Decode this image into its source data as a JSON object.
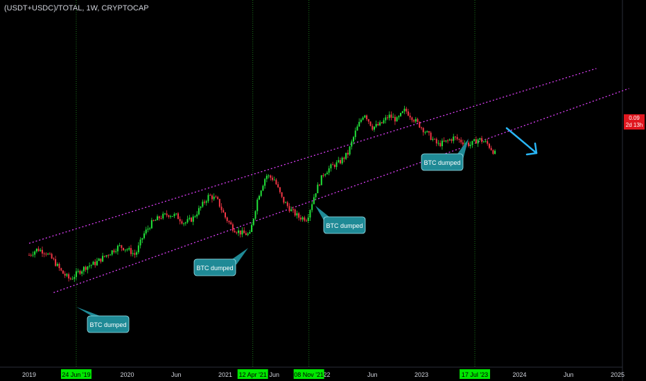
{
  "header": {
    "symbol_title": "(USDT+USDC)/TOTAL, 1W, CRYPTOCAP"
  },
  "price_scale": {
    "last_price": "0.09",
    "countdown": "2d 13h",
    "badge_color": "#e0171f"
  },
  "chart_data": {
    "type": "candlestick",
    "x_axis": {
      "tick_labels": [
        "2019",
        "Jun",
        "2020",
        "Jun",
        "2021",
        "Jun",
        "2022",
        "Jun",
        "2023",
        "Jun",
        "2024",
        "Jun",
        "2025"
      ],
      "highlighted_dates": [
        "24 Jun '19",
        "12 Apr '21",
        "08 Nov '21",
        "17 Jul '23"
      ]
    },
    "price_path": [
      [
        "2019-01",
        0.072
      ],
      [
        "2019-02",
        0.076
      ],
      [
        "2019-03",
        0.074
      ],
      [
        "2019-04",
        0.068
      ],
      [
        "2019-05",
        0.06
      ],
      [
        "2019-06",
        0.055
      ],
      [
        "2019-07",
        0.06
      ],
      [
        "2019-08",
        0.064
      ],
      [
        "2019-09",
        0.066
      ],
      [
        "2019-10",
        0.07
      ],
      [
        "2019-11",
        0.074
      ],
      [
        "2019-12",
        0.078
      ],
      [
        "2020-01",
        0.076
      ],
      [
        "2020-02",
        0.072
      ],
      [
        "2020-03",
        0.086
      ],
      [
        "2020-04",
        0.094
      ],
      [
        "2020-05",
        0.098
      ],
      [
        "2020-06",
        0.1
      ],
      [
        "2020-07",
        0.099
      ],
      [
        "2020-08",
        0.094
      ],
      [
        "2020-09",
        0.097
      ],
      [
        "2020-10",
        0.105
      ],
      [
        "2020-11",
        0.113
      ],
      [
        "2020-12",
        0.11
      ],
      [
        "2021-01",
        0.098
      ],
      [
        "2021-02",
        0.09
      ],
      [
        "2021-03",
        0.087
      ],
      [
        "2021-04",
        0.086
      ],
      [
        "2021-05",
        0.112
      ],
      [
        "2021-06",
        0.127
      ],
      [
        "2021-07",
        0.124
      ],
      [
        "2021-08",
        0.11
      ],
      [
        "2021-09",
        0.103
      ],
      [
        "2021-10",
        0.098
      ],
      [
        "2021-11",
        0.097
      ],
      [
        "2021-12",
        0.115
      ],
      [
        "2022-01",
        0.128
      ],
      [
        "2022-02",
        0.133
      ],
      [
        "2022-03",
        0.136
      ],
      [
        "2022-04",
        0.142
      ],
      [
        "2022-05",
        0.158
      ],
      [
        "2022-06",
        0.17
      ],
      [
        "2022-07",
        0.16
      ],
      [
        "2022-08",
        0.162
      ],
      [
        "2022-09",
        0.168
      ],
      [
        "2022-10",
        0.165
      ],
      [
        "2022-11",
        0.172
      ],
      [
        "2022-12",
        0.166
      ],
      [
        "2023-01",
        0.16
      ],
      [
        "2023-02",
        0.154
      ],
      [
        "2023-03",
        0.148
      ],
      [
        "2023-04",
        0.15
      ],
      [
        "2023-05",
        0.153
      ],
      [
        "2023-06",
        0.15
      ],
      [
        "2023-07",
        0.148
      ],
      [
        "2023-08",
        0.152
      ],
      [
        "2023-09",
        0.149
      ],
      [
        "2023-10",
        0.142
      ]
    ],
    "trend_channel": {
      "color": "#e040fb",
      "style": "dotted",
      "upper_line": [
        [
          "2019-01",
          0.08
        ],
        [
          "2024-02",
          0.186
        ]
      ],
      "lower_line": [
        [
          "2019-04",
          0.046
        ],
        [
          "2024-06",
          0.17
        ]
      ]
    },
    "annotations": [
      {
        "text": "BTC dumped",
        "points_to": "24 Jun '19"
      },
      {
        "text": "BTC dumped",
        "points_to": "12 Apr '21"
      },
      {
        "text": "BTC dumped",
        "points_to": "08 Nov '21"
      },
      {
        "text": "BTC dumped",
        "points_to": "17 Jul '23"
      }
    ],
    "projection_arrow": {
      "direction": "down",
      "color": "#29b6f6"
    },
    "colors": {
      "up": "#22e43a",
      "down": "#f23645",
      "vline": "#1b7a1b",
      "label_bg": "#00e600",
      "bubble": "#1f8a96"
    }
  }
}
